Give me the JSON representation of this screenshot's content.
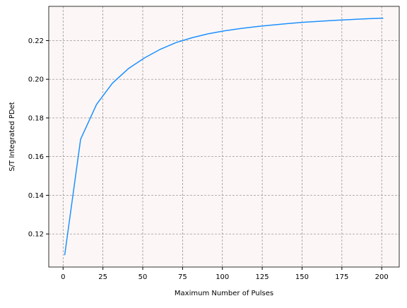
{
  "chart_data": {
    "type": "line",
    "xlabel": "Maximum Number of Pulses",
    "ylabel": "S/T Integrated PDet",
    "x": [
      1,
      11,
      21,
      31,
      41,
      51,
      61,
      71,
      81,
      91,
      101,
      111,
      121,
      131,
      141,
      151,
      161,
      171,
      181,
      191,
      201
    ],
    "series": [
      {
        "color": "#1e90ff",
        "values": [
          0.109,
          0.169,
          0.187,
          0.198,
          0.2055,
          0.211,
          0.2155,
          0.219,
          0.2215,
          0.2235,
          0.225,
          0.2262,
          0.2272,
          0.228,
          0.2288,
          0.2295,
          0.23,
          0.2305,
          0.2309,
          0.2313,
          0.2316
        ]
      }
    ],
    "xlim": [
      -9,
      211
    ],
    "xticks": [
      0,
      25,
      50,
      75,
      100,
      125,
      150,
      175,
      200
    ],
    "ylim": [
      0.1029,
      0.2377
    ],
    "yticks": [
      0.12,
      0.14,
      0.16,
      0.18,
      0.2,
      0.22
    ],
    "grid": true,
    "background": "#fcf7f6"
  }
}
